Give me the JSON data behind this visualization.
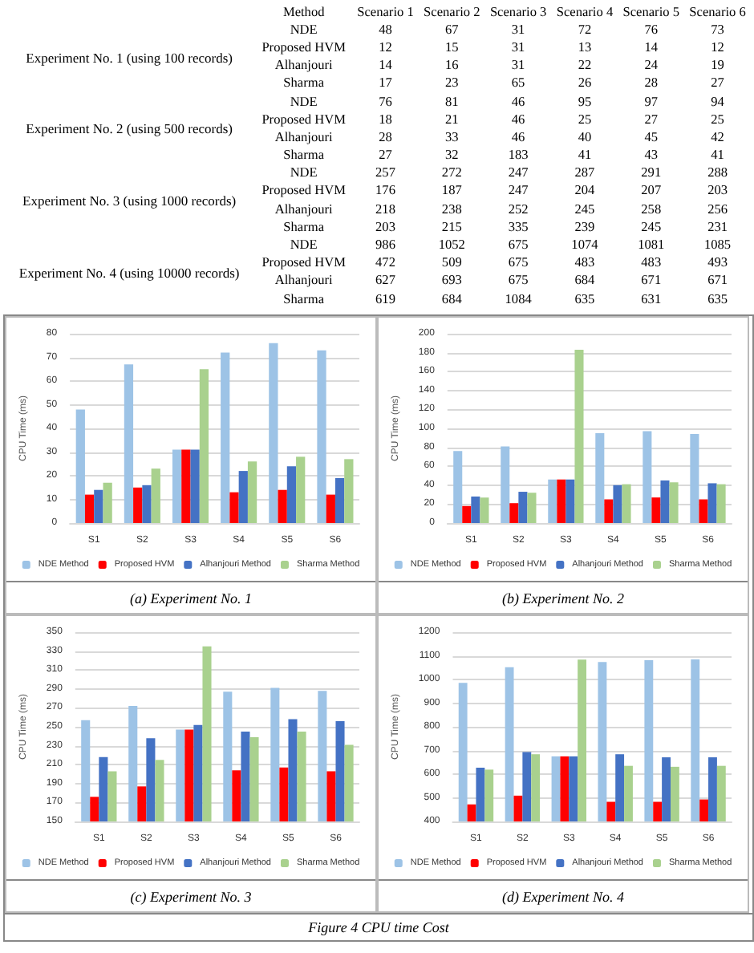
{
  "chart_data": [
    {
      "type": "heatmap",
      "data_labels": true,
      "ylabel": "Method",
      "categories": [
        "Scenario 1",
        "Scenario 2",
        "Scenario 3",
        "Scenario 4",
        "Scenario 5",
        "Scenario 6"
      ],
      "y_categories": [
        "NDE",
        "Proposed HVM",
        "Alhanjouri",
        "Sharma",
        "NDE",
        "Proposed HVM",
        "Alhanjouri",
        "Sharma",
        "NDE",
        "Proposed HVM",
        "Alhanjouri",
        "Sharma",
        "NDE",
        "Proposed HVM",
        "Alhanjouri",
        "Sharma"
      ],
      "cells": [
        [
          48,
          67,
          31,
          72,
          76,
          73
        ],
        [
          12,
          15,
          31,
          13,
          14,
          12
        ],
        [
          14,
          16,
          31,
          22,
          24,
          19
        ],
        [
          17,
          23,
          65,
          26,
          28,
          27
        ],
        [
          76,
          81,
          46,
          95,
          97,
          94
        ],
        [
          18,
          21,
          46,
          25,
          27,
          25
        ],
        [
          28,
          33,
          46,
          40,
          45,
          42
        ],
        [
          27,
          32,
          183,
          41,
          43,
          41
        ],
        [
          257,
          272,
          247,
          287,
          291,
          288
        ],
        [
          176,
          187,
          247,
          204,
          207,
          203
        ],
        [
          218,
          238,
          252,
          245,
          258,
          256
        ],
        [
          203,
          215,
          335,
          239,
          245,
          231
        ],
        [
          986,
          1052,
          675,
          1074,
          1081,
          1085
        ],
        [
          472,
          509,
          675,
          483,
          483,
          493
        ],
        [
          627,
          693,
          675,
          684,
          671,
          671
        ],
        [
          619,
          684,
          1084,
          635,
          631,
          635
        ]
      ],
      "annotations": [
        "Experiment No. 1 (using 100 records)",
        "Experiment No. 2 (using 500 records)",
        "Experiment No. 3 (using 1000 records)",
        "Experiment No. 4 (using 10000 records)"
      ]
    },
    {
      "type": "bar",
      "title": "(a) Experiment No. 1",
      "ylabel": "CPU Time (ms)",
      "categories": [
        "S1",
        "S2",
        "S3",
        "S4",
        "S5",
        "S6"
      ],
      "series": [
        {
          "name": "NDE Method",
          "color": "#9dc3e6",
          "values": [
            48,
            67,
            31,
            72,
            76,
            73
          ]
        },
        {
          "name": "Proposed HVM",
          "color": "#ff0000",
          "values": [
            12,
            15,
            31,
            13,
            14,
            12
          ]
        },
        {
          "name": "Alhanjouri Method",
          "color": "#4472c4",
          "values": [
            14,
            16,
            31,
            22,
            24,
            19
          ]
        },
        {
          "name": "Sharma Method",
          "color": "#a9d18e",
          "values": [
            17,
            23,
            65,
            26,
            28,
            27
          ]
        }
      ],
      "ylim": [
        0,
        80
      ],
      "yticks": [
        0,
        10,
        20,
        30,
        40,
        50,
        60,
        70,
        80
      ],
      "grid": "y",
      "legend": "bottom"
    },
    {
      "type": "bar",
      "title": "(b) Experiment No. 2",
      "ylabel": "CPU Time (ms)",
      "categories": [
        "S1",
        "S2",
        "S3",
        "S4",
        "S5",
        "S6"
      ],
      "series": [
        {
          "name": "NDE Method",
          "color": "#9dc3e6",
          "values": [
            76,
            81,
            46,
            95,
            97,
            94
          ]
        },
        {
          "name": "Proposed HVM",
          "color": "#ff0000",
          "values": [
            18,
            21,
            46,
            25,
            27,
            25
          ]
        },
        {
          "name": "Alhanjouri Method",
          "color": "#4472c4",
          "values": [
            28,
            33,
            46,
            40,
            45,
            42
          ]
        },
        {
          "name": "Sharma Method",
          "color": "#a9d18e",
          "values": [
            27,
            32,
            183,
            41,
            43,
            41
          ]
        }
      ],
      "ylim": [
        0,
        200
      ],
      "yticks": [
        0,
        20,
        40,
        60,
        80,
        100,
        120,
        140,
        160,
        180,
        200
      ],
      "grid": "y",
      "legend": "bottom"
    },
    {
      "type": "bar",
      "title": "(c) Experiment No. 3",
      "ylabel": "CPU Time (ms)",
      "categories": [
        "S1",
        "S2",
        "S3",
        "S4",
        "S5",
        "S6"
      ],
      "series": [
        {
          "name": "NDE Method",
          "color": "#9dc3e6",
          "values": [
            257,
            272,
            247,
            287,
            291,
            288
          ]
        },
        {
          "name": "Proposed HVM",
          "color": "#ff0000",
          "values": [
            176,
            187,
            247,
            204,
            207,
            203
          ]
        },
        {
          "name": "Alhanjouri Method",
          "color": "#4472c4",
          "values": [
            218,
            238,
            252,
            245,
            258,
            256
          ]
        },
        {
          "name": "Sharma Method",
          "color": "#a9d18e",
          "values": [
            203,
            215,
            335,
            239,
            245,
            231
          ]
        }
      ],
      "ylim": [
        150,
        350
      ],
      "yticks": [
        150,
        170,
        190,
        210,
        230,
        250,
        270,
        290,
        310,
        330,
        350
      ],
      "grid": "y",
      "legend": "bottom"
    },
    {
      "type": "bar",
      "title": "(d) Experiment No. 4",
      "ylabel": "CPU Time (ms)",
      "categories": [
        "S1",
        "S2",
        "S3",
        "S4",
        "S5",
        "S6"
      ],
      "series": [
        {
          "name": "NDE Method",
          "color": "#9dc3e6",
          "values": [
            986,
            1052,
            675,
            1074,
            1081,
            1085
          ]
        },
        {
          "name": "Proposed HVM",
          "color": "#ff0000",
          "values": [
            472,
            509,
            675,
            483,
            483,
            493
          ]
        },
        {
          "name": "Alhanjouri Method",
          "color": "#4472c4",
          "values": [
            627,
            693,
            675,
            684,
            671,
            671
          ]
        },
        {
          "name": "Sharma Method",
          "color": "#a9d18e",
          "values": [
            619,
            684,
            1084,
            635,
            631,
            635
          ]
        }
      ],
      "ylim": [
        400,
        1200
      ],
      "yticks": [
        400,
        500,
        600,
        700,
        800,
        900,
        1000,
        1100,
        1200
      ],
      "grid": "y",
      "legend": "bottom",
      "annotations": [
        "Figure 4 CPU time Cost"
      ]
    }
  ]
}
